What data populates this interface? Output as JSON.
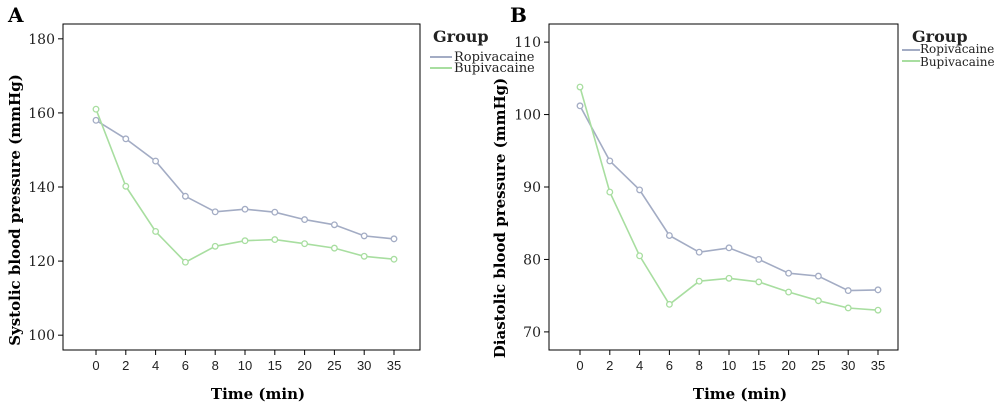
{
  "panels": [
    {
      "panel_label": "A",
      "legend_title": "Group",
      "chart_data": {
        "type": "line",
        "title": "",
        "xlabel": "Time (min)",
        "ylabel": "Systolic blood pressure (mmHg)",
        "categories": [
          "0",
          "2",
          "4",
          "6",
          "8",
          "10",
          "15",
          "20",
          "25",
          "30",
          "35"
        ],
        "ylim": [
          96,
          184
        ],
        "yticks": [
          100,
          120,
          140,
          160,
          180
        ],
        "grid": false,
        "legend_position": "top-right-outside",
        "series": [
          {
            "name": "Ropivacaine",
            "color": "#a3acc4",
            "values": [
              158,
              153,
              147,
              137.5,
              133.3,
              134,
              133.2,
              131.2,
              129.8,
              126.8,
              126
            ]
          },
          {
            "name": "Bupivacaine",
            "color": "#a8dea0",
            "values": [
              161,
              140.2,
              128,
              119.7,
              124,
              125.5,
              125.8,
              124.7,
              123.5,
              121.3,
              120.5
            ]
          }
        ]
      }
    },
    {
      "panel_label": "B",
      "legend_title": "Group",
      "chart_data": {
        "type": "line",
        "title": "",
        "xlabel": "Time (min)",
        "ylabel": "Diastolic blood pressure (mmHg)",
        "categories": [
          "0",
          "2",
          "4",
          "6",
          "8",
          "10",
          "15",
          "20",
          "25",
          "30",
          "35"
        ],
        "ylim": [
          67.5,
          112.5
        ],
        "yticks": [
          70,
          80,
          90,
          100,
          110
        ],
        "grid": false,
        "legend_position": "top-right-outside",
        "series": [
          {
            "name": "Ropivacaine",
            "color": "#a3acc4",
            "values": [
              101.2,
              93.6,
              89.6,
              83.3,
              81,
              81.6,
              80,
              78.1,
              77.7,
              75.7,
              75.8
            ]
          },
          {
            "name": "Bupivacaine",
            "color": "#a8dea0",
            "values": [
              103.8,
              89.3,
              80.5,
              73.8,
              77,
              77.4,
              76.9,
              75.5,
              74.3,
              73.3,
              73
            ]
          }
        ]
      }
    }
  ]
}
